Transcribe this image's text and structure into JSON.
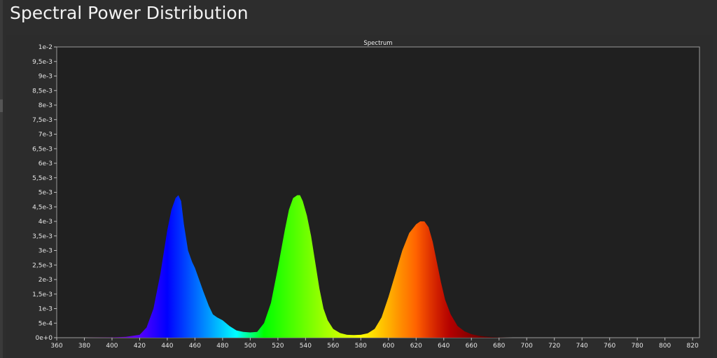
{
  "page": {
    "title": "Spectral Power Distribution"
  },
  "chart_data": {
    "type": "area",
    "title": "Spectrum",
    "xlabel": "",
    "ylabel": "",
    "xlim": [
      360,
      825
    ],
    "ylim": [
      0,
      0.01
    ],
    "x_ticks": [
      "360",
      "380",
      "400",
      "420",
      "440",
      "460",
      "480",
      "500",
      "520",
      "540",
      "560",
      "580",
      "600",
      "620",
      "640",
      "660",
      "680",
      "700",
      "720",
      "740",
      "760",
      "780",
      "800",
      "820"
    ],
    "y_ticks": [
      "0e+0",
      "5e-4",
      "1e-3",
      "1,5e-3",
      "2e-3",
      "2,5e-3",
      "3e-3",
      "3,5e-3",
      "4e-3",
      "4,5e-3",
      "5e-3",
      "5,5e-3",
      "6e-3",
      "6,5e-3",
      "7e-3",
      "7,5e-3",
      "8e-3",
      "8,5e-3",
      "9e-3",
      "9,5e-3",
      "1e-2"
    ],
    "grid": false,
    "fill": "wavelength-colored spectrum",
    "series": [
      {
        "x": [
          380,
          400,
          410,
          420,
          425,
          430,
          435,
          440,
          443,
          446,
          448,
          450,
          452,
          455,
          458,
          460,
          463,
          466,
          470,
          473,
          476,
          480,
          485,
          490,
          495,
          500,
          505,
          510,
          515,
          520,
          525,
          528,
          531,
          534,
          536,
          538,
          541,
          544,
          547,
          550,
          553,
          556,
          560,
          565,
          570,
          575,
          580,
          585,
          590,
          595,
          600,
          605,
          610,
          615,
          620,
          623,
          626,
          629,
          632,
          635,
          638,
          641,
          645,
          650,
          655,
          660,
          665,
          670,
          675,
          680,
          690,
          700,
          720,
          750,
          780,
          800,
          820
        ],
        "y": [
          0,
          1e-05,
          3e-05,
          0.0001,
          0.00035,
          0.001,
          0.0022,
          0.0037,
          0.0044,
          0.0048,
          0.0049,
          0.0047,
          0.0039,
          0.003,
          0.0026,
          0.0024,
          0.002,
          0.0016,
          0.0011,
          0.0008,
          0.0007,
          0.0006,
          0.0004,
          0.00025,
          0.0002,
          0.00018,
          0.0002,
          0.0005,
          0.0012,
          0.0024,
          0.0037,
          0.0044,
          0.0048,
          0.0049,
          0.0049,
          0.0047,
          0.0042,
          0.0035,
          0.0026,
          0.0017,
          0.001,
          0.0006,
          0.0003,
          0.00016,
          0.0001,
          9e-05,
          0.0001,
          0.00015,
          0.0003,
          0.0007,
          0.0014,
          0.0022,
          0.003,
          0.0036,
          0.0039,
          0.004,
          0.004,
          0.0038,
          0.0033,
          0.0026,
          0.0019,
          0.0013,
          0.0008,
          0.0004,
          0.00022,
          0.00012,
          7e-05,
          4e-05,
          2e-05,
          1e-05,
          0,
          0,
          0,
          0,
          0,
          0,
          0
        ]
      }
    ]
  }
}
